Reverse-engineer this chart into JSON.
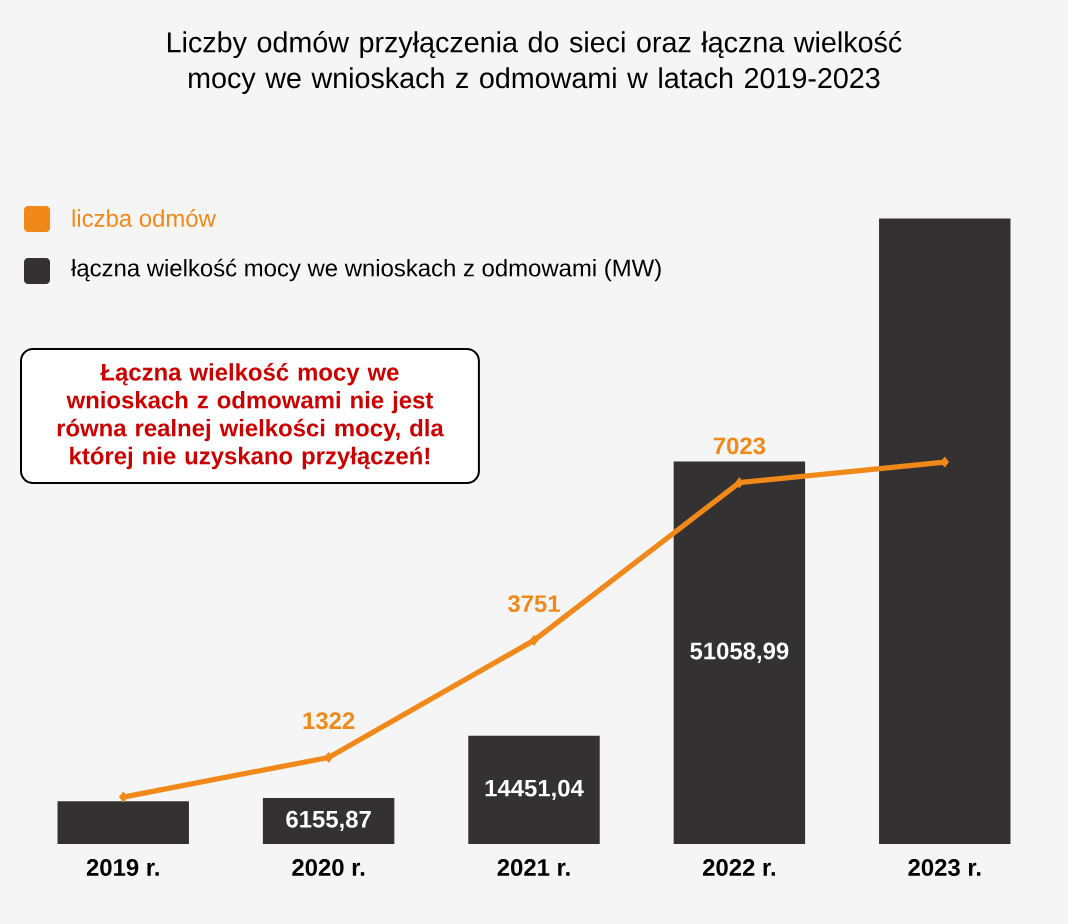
{
  "chart_data": {
    "type": "bar",
    "title": "Liczby odmów przyłączenia do sieci oraz łączna wielkość mocy we wnioskach z odmowami w latach 2019-2023",
    "categories": [
      "2019 r.",
      "2020 r.",
      "2021 r.",
      "2022 r.",
      "2023 r."
    ],
    "series": [
      {
        "name": "liczba odmów",
        "type": "line",
        "axis": "y2",
        "color": "#f0891a",
        "values": [
          500,
          1322,
          3751,
          7023,
          7450
        ],
        "value_labels": [
          null,
          "1322",
          "3751",
          "7023",
          null
        ]
      },
      {
        "name": "łączna wielkość mocy we wnioskach z odmowami (MW)",
        "color": "#333132",
        "values": [
          5700,
          6155.87,
          14451.04,
          51058.99,
          83500
        ],
        "value_labels": [
          null,
          "6155,87",
          "14451,04",
          "51058,99",
          null
        ]
      }
    ],
    "legend": "top left",
    "marker": "diamond",
    "annotations": [
      "Łączna wielkość mocy we wnioskach z odmowami nie jest równa realnej wielkości mocy, dla której nie uzyskano przyłączeń!"
    ]
  }
}
